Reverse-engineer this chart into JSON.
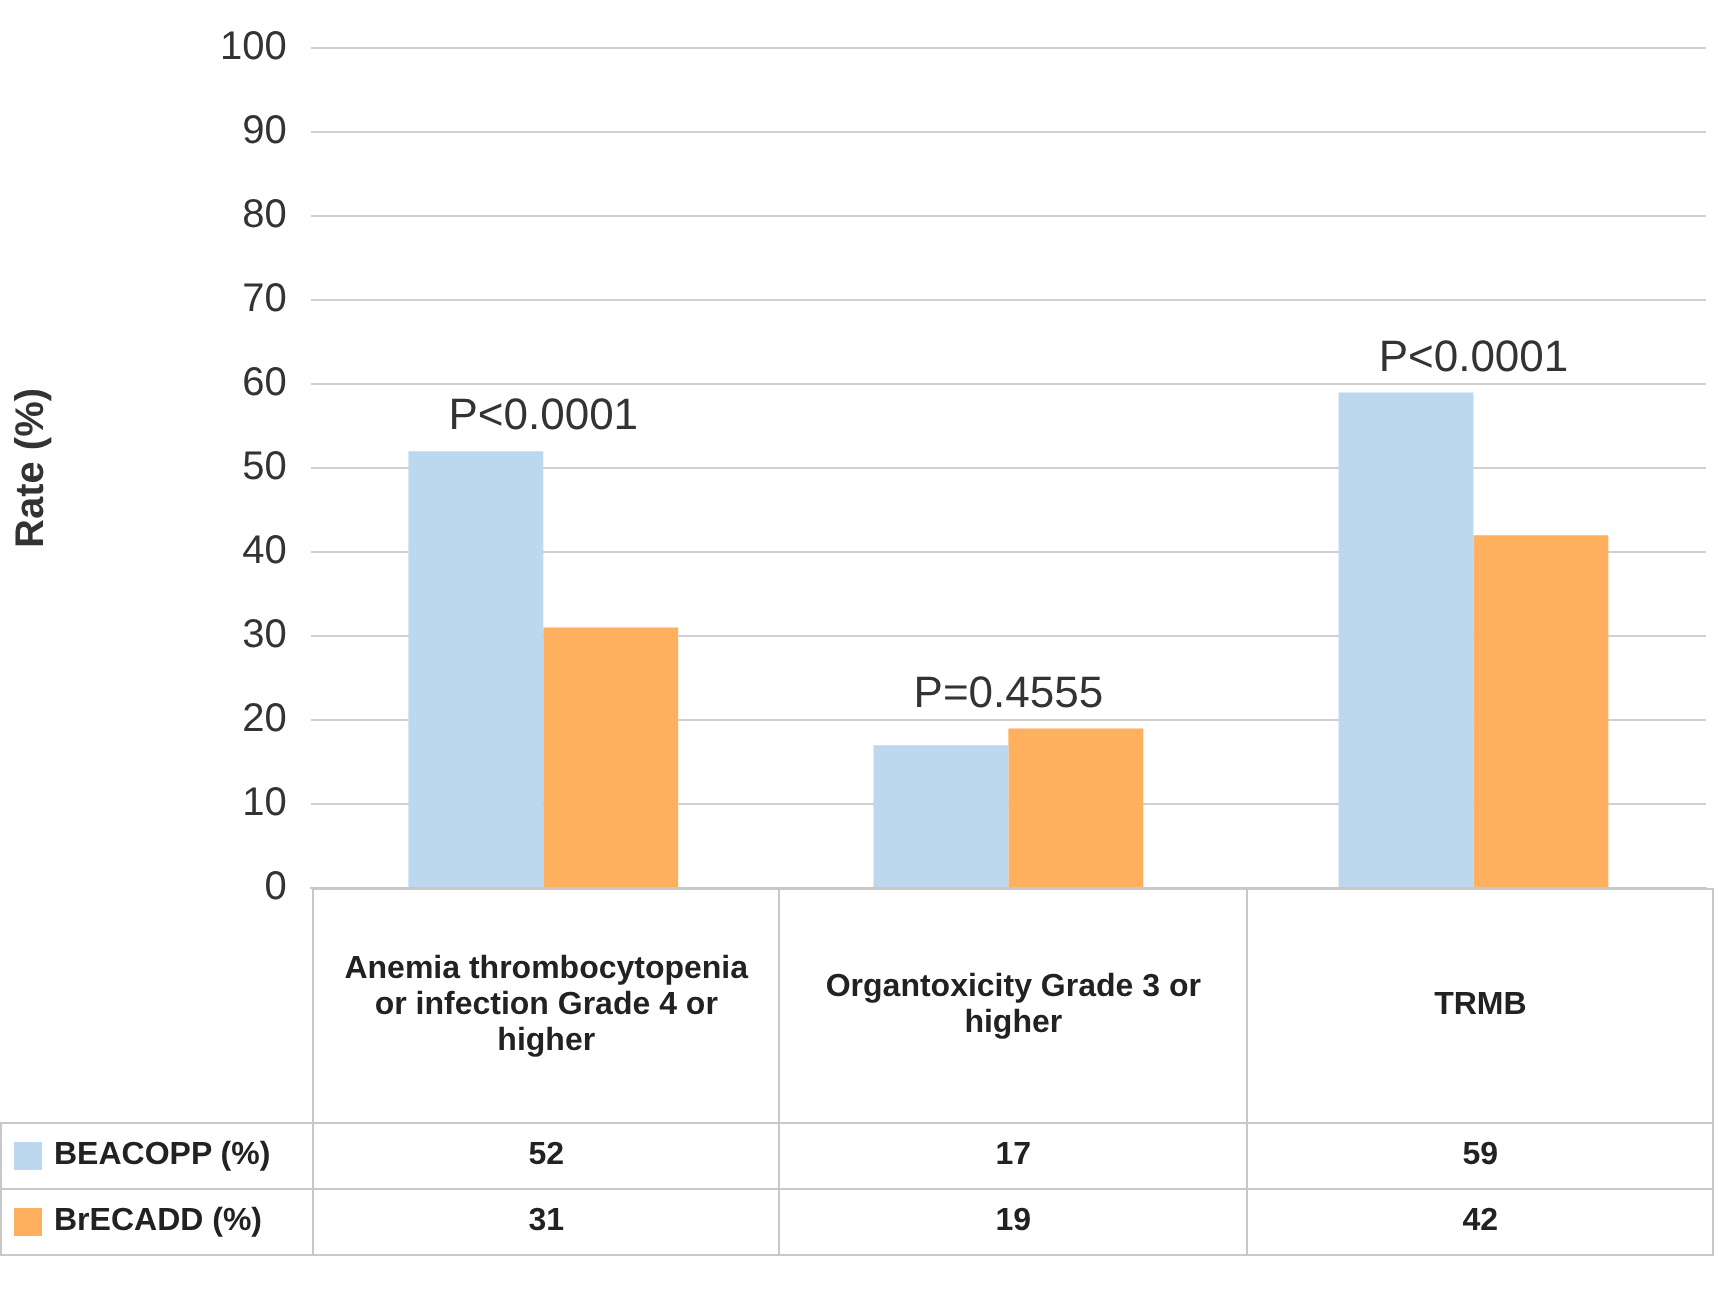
{
  "chart_data": {
    "type": "bar",
    "ylabel": "Rate (%)",
    "categories": [
      "Anemia thrombocytopenia or infection Grade 4 or higher",
      "Organtoxicity Grade 3 or higher",
      "TRMB"
    ],
    "series": [
      {
        "name": "BEACOPP (%)",
        "color": "#bdd7ee",
        "values": [
          52,
          17,
          59
        ]
      },
      {
        "name": "BrECADD (%)",
        "color": "#ffb05f",
        "values": [
          31,
          19,
          42
        ]
      }
    ],
    "ylim": [
      0,
      100
    ],
    "yticks": [
      0,
      10,
      20,
      30,
      40,
      50,
      60,
      70,
      80,
      90,
      100
    ],
    "grid": "y",
    "legend": "bottom",
    "data_labels": true,
    "annotations": [
      "P<0.0001",
      "P=0.4555",
      "P<0.0001"
    ]
  }
}
